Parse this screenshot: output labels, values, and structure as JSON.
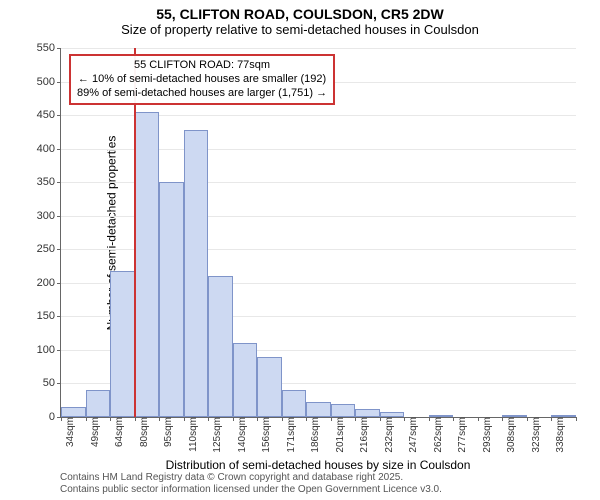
{
  "title_main": "55, CLIFTON ROAD, COULSDON, CR5 2DW",
  "title_sub": "Size of property relative to semi-detached houses in Coulsdon",
  "y_label": "Number of semi-detached properties",
  "x_label": "Distribution of semi-detached houses by size in Coulsdon",
  "attribution_line1": "Contains HM Land Registry data © Crown copyright and database right 2025.",
  "attribution_line2": "Contains public sector information licensed under the Open Government Licence v3.0.",
  "chart": {
    "type": "histogram",
    "background_color": "#ffffff",
    "grid_color": "#e8e8e8",
    "axis_color": "#666666",
    "bar_fill": "#cdd9f2",
    "bar_stroke": "#7f94c9",
    "bar_stroke_width": 1,
    "marker_color": "#cc3333",
    "marker_width": 2,
    "callout_border": "#cc3333",
    "ylim": [
      0,
      550
    ],
    "ytick_step": 50,
    "bar_width_ratio": 1.0,
    "title_fontsize": 14,
    "subtitle_fontsize": 13,
    "label_fontsize": 12,
    "tick_fontsize": 11,
    "xtick_fontsize": 10,
    "categories": [
      "34sqm",
      "49sqm",
      "64sqm",
      "80sqm",
      "95sqm",
      "110sqm",
      "125sqm",
      "140sqm",
      "156sqm",
      "171sqm",
      "186sqm",
      "201sqm",
      "216sqm",
      "232sqm",
      "247sqm",
      "262sqm",
      "277sqm",
      "293sqm",
      "308sqm",
      "323sqm",
      "338sqm"
    ],
    "values": [
      15,
      40,
      218,
      455,
      350,
      428,
      210,
      110,
      90,
      40,
      22,
      20,
      12,
      8,
      0,
      3,
      0,
      0,
      3,
      0,
      3
    ],
    "marker_index": 3,
    "marker_offset_ratio": 0.0,
    "callout": {
      "line1": "55 CLIFTON ROAD: 77sqm",
      "line2": "← 10% of semi-detached houses are smaller (192)",
      "line3": "89% of semi-detached houses are larger (1,751) →"
    }
  }
}
